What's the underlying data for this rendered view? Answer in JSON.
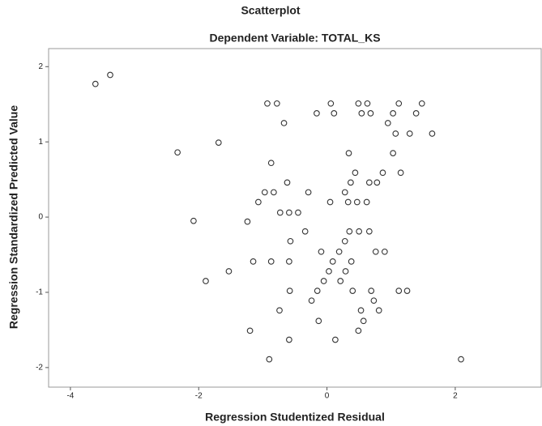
{
  "chart_data": {
    "type": "scatter",
    "title": "Scatterplot",
    "subtitle": "Dependent Variable: TOTAL_KS",
    "x_label": "Regression Studentized Residual",
    "y_label": "Regression Standardized Predicted Value",
    "color": "#333333",
    "xlim": [
      -4.34,
      3.34
    ],
    "xticks": [
      -4,
      -2,
      0,
      2
    ],
    "ylim": [
      -2.26,
      2.24
    ],
    "yticks": [
      -2,
      -1,
      0,
      1,
      2
    ],
    "x": [
      -3.61,
      -3.38,
      -2.33,
      -1.69,
      -2.08,
      -1.53,
      -1.89,
      -0.93,
      -0.78,
      -0.67,
      -0.87,
      -0.16,
      0.06,
      0.11,
      0.49,
      0.63,
      0.54,
      0.68,
      1.12,
      1.03,
      1.07,
      0.95,
      1.29,
      1.48,
      1.39,
      1.64,
      0.34,
      1.03,
      0.44,
      0.87,
      1.15,
      0.37,
      0.66,
      0.78,
      -0.97,
      -0.83,
      -0.62,
      -1.07,
      -0.29,
      0.28,
      0.05,
      0.33,
      0.47,
      0.62,
      -0.73,
      -0.59,
      -0.45,
      -1.24,
      -0.34,
      -0.57,
      0.35,
      0.5,
      0.66,
      0.28,
      -0.09,
      0.19,
      0.76,
      0.9,
      -1.15,
      -0.87,
      -0.59,
      0.09,
      0.38,
      0.03,
      0.29,
      -0.05,
      0.21,
      -0.58,
      -0.15,
      0.4,
      0.69,
      1.12,
      1.25,
      -0.24,
      0.73,
      -0.74,
      0.53,
      0.81,
      -0.13,
      0.57,
      -1.2,
      0.49,
      -0.59,
      0.13,
      -0.9,
      2.09
    ],
    "values": [
      1.77,
      1.89,
      0.86,
      0.99,
      -0.05,
      -0.72,
      -0.85,
      1.51,
      1.51,
      1.25,
      0.72,
      1.38,
      1.51,
      1.38,
      1.51,
      1.51,
      1.38,
      1.38,
      1.51,
      1.38,
      1.11,
      1.25,
      1.11,
      1.51,
      1.38,
      1.11,
      0.85,
      0.85,
      0.59,
      0.59,
      0.59,
      0.46,
      0.46,
      0.46,
      0.33,
      0.33,
      0.46,
      0.2,
      0.33,
      0.33,
      0.2,
      0.2,
      0.2,
      0.2,
      0.06,
      0.06,
      0.06,
      -0.06,
      -0.19,
      -0.32,
      -0.19,
      -0.19,
      -0.19,
      -0.32,
      -0.46,
      -0.46,
      -0.46,
      -0.46,
      -0.59,
      -0.59,
      -0.59,
      -0.59,
      -0.59,
      -0.72,
      -0.72,
      -0.85,
      -0.85,
      -0.98,
      -0.98,
      -0.98,
      -0.98,
      -0.98,
      -0.98,
      -1.11,
      -1.11,
      -1.24,
      -1.24,
      -1.24,
      -1.38,
      -1.38,
      -1.51,
      -1.51,
      -1.63,
      -1.63,
      -1.89,
      -1.89
    ]
  }
}
